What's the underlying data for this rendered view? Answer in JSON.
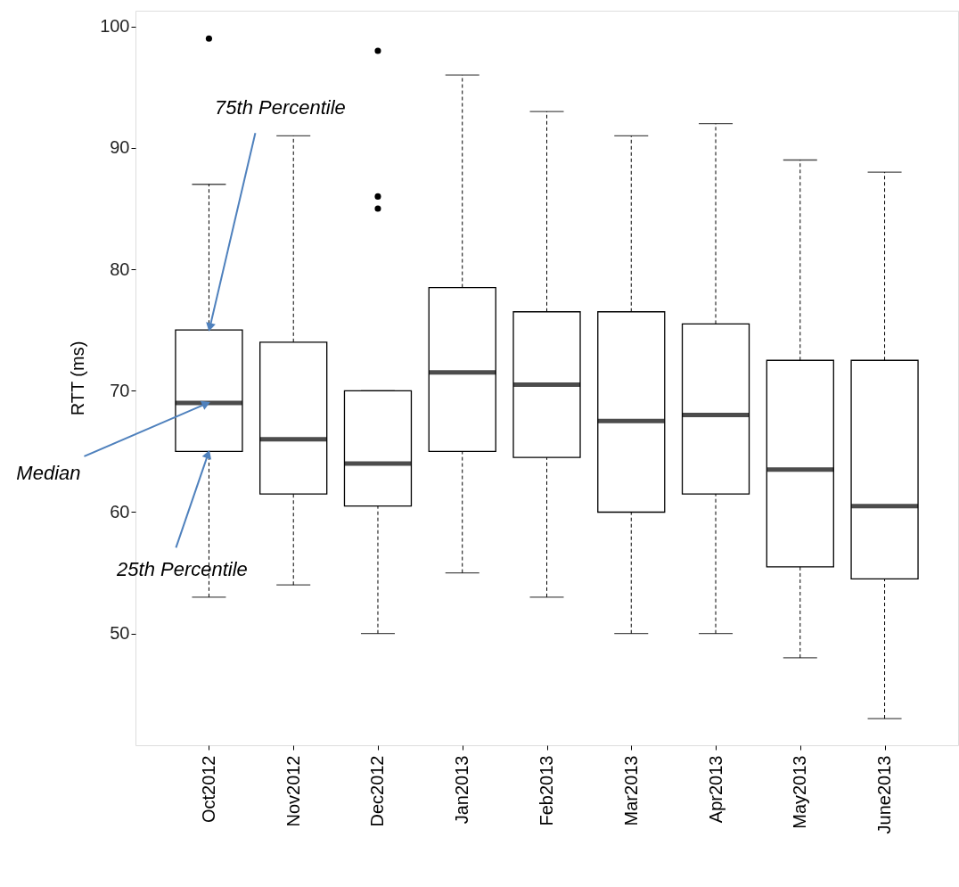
{
  "chart_data": {
    "type": "box",
    "ylabel": "RTT (ms)",
    "categories": [
      "Oct2012",
      "Nov2012",
      "Dec2012",
      "Jan2013",
      "Feb2013",
      "Mar2013",
      "Apr2013",
      "May2013",
      "June2013"
    ],
    "boxes": [
      {
        "low": 53,
        "q1": 65,
        "median": 69,
        "q3": 75,
        "high": 87,
        "outliers": [
          99
        ]
      },
      {
        "low": 54,
        "q1": 61.5,
        "median": 66,
        "q3": 74,
        "high": 91
      },
      {
        "low": 50,
        "q1": 60.5,
        "median": 64,
        "q3": 70,
        "high": 70,
        "outliers": [
          98,
          86,
          85
        ]
      },
      {
        "low": 55,
        "q1": 65,
        "median": 71.5,
        "q3": 78.5,
        "high": 96
      },
      {
        "low": 53,
        "q1": 64.5,
        "median": 70.5,
        "q3": 76.5,
        "high": 93
      },
      {
        "low": 50,
        "q1": 60,
        "median": 67.5,
        "q3": 76.5,
        "high": 91
      },
      {
        "low": 50,
        "q1": 61.5,
        "median": 68,
        "q3": 75.5,
        "high": 92
      },
      {
        "low": 48,
        "q1": 55.5,
        "median": 63.5,
        "q3": 72.5,
        "high": 89
      },
      {
        "low": 43,
        "q1": 54.5,
        "median": 60.5,
        "q3": 72.5,
        "high": 88
      }
    ],
    "ylim": [
      40.8,
      101.3
    ],
    "yticks": [
      50,
      60,
      70,
      80,
      90,
      100
    ],
    "grid": false,
    "annotations": [
      {
        "text": "75th Percentile",
        "x": "Oct2012",
        "y": 75
      },
      {
        "text": "Median",
        "x": "Oct2012",
        "y": 69
      },
      {
        "text": "25th Percentile",
        "x": "Oct2012",
        "y": 65
      }
    ]
  }
}
